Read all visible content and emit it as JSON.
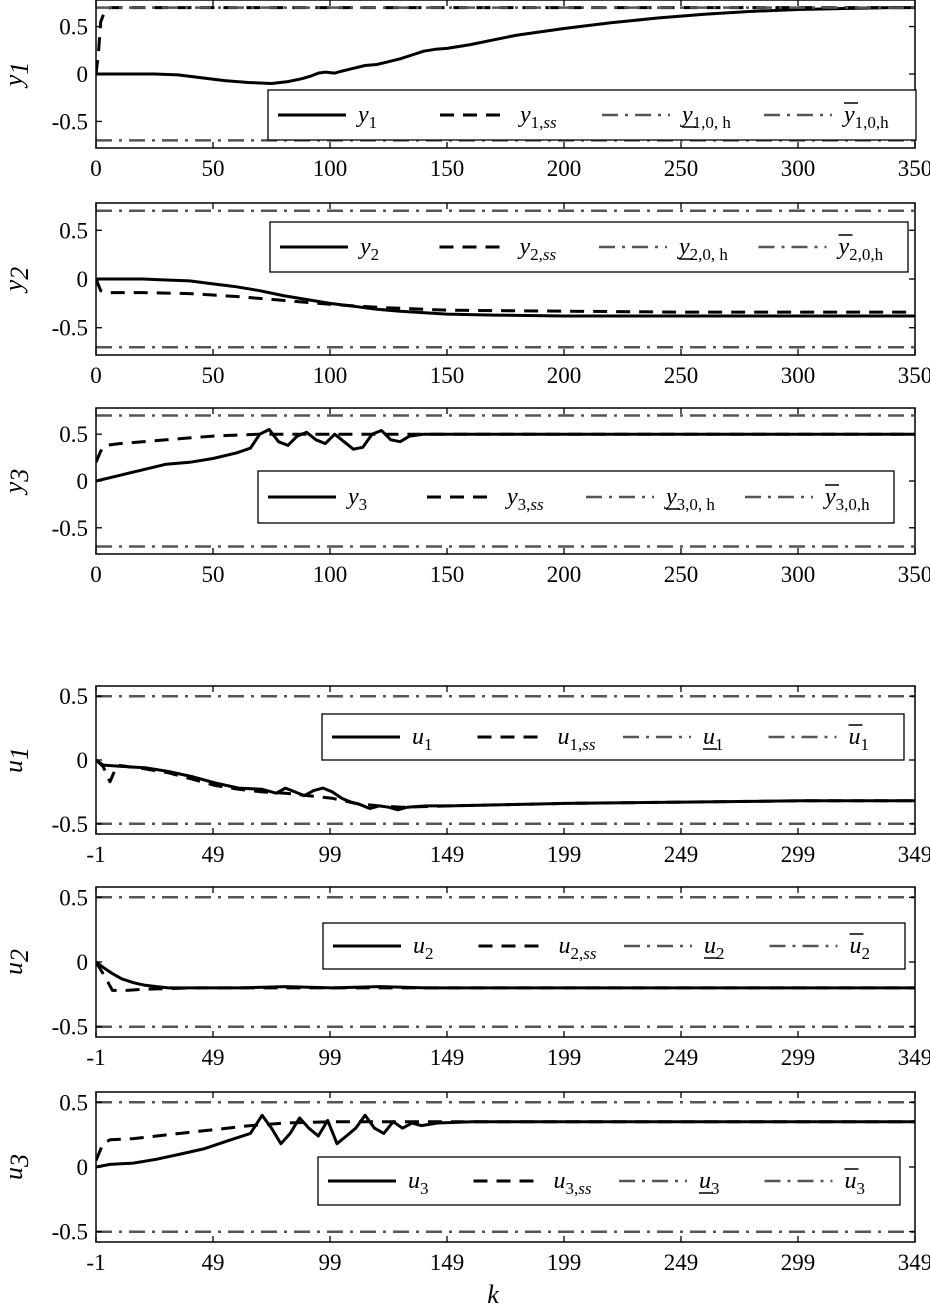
{
  "chart_data": [
    {
      "type": "line",
      "ylabel": "y",
      "ylabel_sub": "1",
      "xlim": [
        0,
        350
      ],
      "ylim": [
        -0.78,
        0.78
      ],
      "xticks": [
        0,
        50,
        100,
        150,
        200,
        250,
        300,
        350
      ],
      "xtick_labels": [
        "0",
        "50",
        "100",
        "150",
        "200",
        "250",
        "300",
        "350"
      ],
      "yticks": [
        0.5,
        0,
        -0.5
      ],
      "ytick_labels": [
        "0.5",
        "0",
        "-0.5"
      ],
      "grid": false,
      "legend_position": "bottom-right",
      "series": [
        {
          "name": "y1",
          "label_main": "y",
          "label_sub": "1",
          "style": "solid",
          "x": [
            0,
            25,
            35,
            45,
            55,
            65,
            75,
            82,
            88,
            92,
            95,
            98,
            102,
            105,
            110,
            115,
            120,
            125,
            130,
            135,
            140,
            145,
            150,
            160,
            170,
            180,
            200,
            220,
            240,
            260,
            280,
            300,
            320,
            340,
            350
          ],
          "y": [
            0,
            0,
            -0.01,
            -0.04,
            -0.07,
            -0.09,
            -0.1,
            -0.08,
            -0.05,
            -0.02,
            0.01,
            0.02,
            0.01,
            0.03,
            0.06,
            0.09,
            0.1,
            0.13,
            0.16,
            0.2,
            0.24,
            0.26,
            0.27,
            0.31,
            0.36,
            0.41,
            0.48,
            0.54,
            0.59,
            0.63,
            0.66,
            0.68,
            0.69,
            0.7,
            0.7
          ]
        },
        {
          "name": "y1,ss",
          "label_main": "y",
          "label_sub": "1,",
          "label_subit": "ss",
          "style": "dashed",
          "x": [
            0,
            1,
            2,
            4,
            6,
            350
          ],
          "y": [
            0,
            0.2,
            0.55,
            0.68,
            0.7,
            0.7
          ]
        },
        {
          "name": "y_1,0,h",
          "label_main": "y",
          "label_sub": "1,0, h",
          "style": "dashdot",
          "bar": "under",
          "x": [
            0,
            350
          ],
          "y": [
            -0.7,
            -0.7
          ]
        },
        {
          "name": "ȳ1,0,h",
          "label_main": "y",
          "label_sub": "1,0,h",
          "style": "dashdot",
          "bar": "over",
          "x": [
            0,
            350
          ],
          "y": [
            0.7,
            0.7
          ]
        }
      ]
    },
    {
      "type": "line",
      "ylabel": "y",
      "ylabel_sub": "2",
      "xlim": [
        0,
        350
      ],
      "ylim": [
        -0.78,
        0.78
      ],
      "xticks": [
        0,
        50,
        100,
        150,
        200,
        250,
        300,
        350
      ],
      "xtick_labels": [
        "0",
        "50",
        "100",
        "150",
        "200",
        "250",
        "300",
        "350"
      ],
      "yticks": [
        0.5,
        0,
        -0.5
      ],
      "ytick_labels": [
        "0.5",
        "0",
        "-0.5"
      ],
      "grid": false,
      "legend_position": "top-right",
      "series": [
        {
          "name": "y2",
          "label_main": "y",
          "label_sub": "2",
          "style": "solid",
          "x": [
            0,
            20,
            30,
            40,
            50,
            60,
            70,
            80,
            90,
            100,
            110,
            120,
            130,
            150,
            170,
            200,
            250,
            300,
            350
          ],
          "y": [
            0,
            0,
            -0.01,
            -0.02,
            -0.05,
            -0.08,
            -0.12,
            -0.17,
            -0.21,
            -0.25,
            -0.28,
            -0.31,
            -0.33,
            -0.36,
            -0.37,
            -0.38,
            -0.38,
            -0.38,
            -0.38
          ]
        },
        {
          "name": "y2,ss",
          "label_main": "y",
          "label_sub": "2,",
          "label_subit": "ss",
          "style": "dashed",
          "x": [
            0,
            2,
            4,
            20,
            40,
            60,
            80,
            100,
            120,
            150,
            200,
            250,
            300,
            350
          ],
          "y": [
            0,
            -0.12,
            -0.14,
            -0.14,
            -0.15,
            -0.18,
            -0.22,
            -0.26,
            -0.29,
            -0.32,
            -0.33,
            -0.34,
            -0.34,
            -0.34
          ]
        },
        {
          "name": "y_2,0,h",
          "label_main": "y",
          "label_sub": "2,0, h",
          "style": "dashdot",
          "bar": "under",
          "x": [
            0,
            350
          ],
          "y": [
            -0.7,
            -0.7
          ]
        },
        {
          "name": "ȳ2,0,h",
          "label_main": "y",
          "label_sub": "2,0,h",
          "style": "dashdot",
          "bar": "over",
          "x": [
            0,
            350
          ],
          "y": [
            0.7,
            0.7
          ]
        }
      ]
    },
    {
      "type": "line",
      "ylabel": "y",
      "ylabel_sub": "3",
      "xlim": [
        0,
        350
      ],
      "ylim": [
        -0.78,
        0.78
      ],
      "xticks": [
        0,
        50,
        100,
        150,
        200,
        250,
        300,
        350
      ],
      "xtick_labels": [
        "0",
        "50",
        "100",
        "150",
        "200",
        "250",
        "300",
        "350"
      ],
      "yticks": [
        0.5,
        0,
        -0.5
      ],
      "ytick_labels": [
        "0.5",
        "0",
        "-0.5"
      ],
      "grid": false,
      "legend_position": "bottom-right",
      "series": [
        {
          "name": "y3",
          "label_main": "y",
          "label_sub": "3",
          "style": "solid",
          "x": [
            0,
            10,
            20,
            30,
            40,
            50,
            60,
            66,
            70,
            74,
            78,
            82,
            86,
            90,
            94,
            98,
            102,
            106,
            110,
            114,
            118,
            122,
            126,
            130,
            134,
            140,
            150,
            200,
            250,
            300,
            350
          ],
          "y": [
            0,
            0.06,
            0.12,
            0.18,
            0.2,
            0.24,
            0.3,
            0.35,
            0.5,
            0.55,
            0.42,
            0.38,
            0.48,
            0.52,
            0.44,
            0.4,
            0.5,
            0.42,
            0.34,
            0.36,
            0.5,
            0.54,
            0.44,
            0.42,
            0.48,
            0.5,
            0.5,
            0.5,
            0.5,
            0.5,
            0.5
          ]
        },
        {
          "name": "y3,ss",
          "label_main": "y",
          "label_sub": "3,",
          "label_subit": "ss",
          "style": "dashed",
          "x": [
            0,
            2,
            4,
            10,
            20,
            30,
            40,
            50,
            60,
            70,
            80,
            100,
            120,
            150,
            200,
            250,
            300,
            350
          ],
          "y": [
            0.2,
            0.32,
            0.38,
            0.4,
            0.42,
            0.44,
            0.46,
            0.48,
            0.49,
            0.5,
            0.5,
            0.5,
            0.5,
            0.5,
            0.5,
            0.5,
            0.5,
            0.5
          ]
        },
        {
          "name": "y_3,0,h",
          "label_main": "y",
          "label_sub": "3,0, h",
          "style": "dashdot",
          "bar": "under",
          "x": [
            0,
            350
          ],
          "y": [
            -0.7,
            -0.7
          ]
        },
        {
          "name": "ȳ3,0,h",
          "label_main": "y",
          "label_sub": "3,0,h",
          "style": "dashdot",
          "bar": "over",
          "x": [
            0,
            350
          ],
          "y": [
            0.7,
            0.7
          ]
        }
      ]
    },
    {
      "type": "line",
      "ylabel": "u",
      "ylabel_sub": "1",
      "xlim": [
        -1,
        349
      ],
      "ylim": [
        -0.58,
        0.58
      ],
      "xticks": [
        -1,
        49,
        99,
        149,
        199,
        249,
        299,
        349
      ],
      "xtick_labels": [
        "-1",
        "49",
        "99",
        "149",
        "199",
        "249",
        "299",
        "349"
      ],
      "yticks": [
        0.5,
        0,
        -0.5
      ],
      "ytick_labels": [
        "0.5",
        "0",
        "-0.5"
      ],
      "grid": false,
      "legend_position": "top-right",
      "series": [
        {
          "name": "u1",
          "label_main": "u",
          "label_sub": "1",
          "style": "solid",
          "x": [
            -1,
            2,
            10,
            20,
            30,
            40,
            50,
            60,
            70,
            76,
            80,
            84,
            88,
            92,
            96,
            100,
            104,
            108,
            112,
            116,
            120,
            124,
            128,
            132,
            140,
            150,
            200,
            250,
            300,
            349
          ],
          "y": [
            0,
            -0.04,
            -0.05,
            -0.06,
            -0.09,
            -0.13,
            -0.18,
            -0.22,
            -0.23,
            -0.26,
            -0.22,
            -0.25,
            -0.28,
            -0.24,
            -0.22,
            -0.25,
            -0.3,
            -0.33,
            -0.35,
            -0.38,
            -0.36,
            -0.37,
            -0.39,
            -0.37,
            -0.36,
            -0.36,
            -0.34,
            -0.33,
            -0.32,
            -0.32
          ]
        },
        {
          "name": "u1,ss",
          "label_main": "u",
          "label_sub": "1,",
          "label_subit": "ss",
          "style": "dashed",
          "x": [
            -1,
            2,
            5,
            8,
            12,
            20,
            30,
            40,
            50,
            60,
            70,
            80,
            90,
            100,
            110,
            120,
            130,
            150,
            200,
            250,
            300,
            349
          ],
          "y": [
            0,
            -0.05,
            -0.17,
            -0.04,
            -0.05,
            -0.07,
            -0.1,
            -0.15,
            -0.2,
            -0.23,
            -0.25,
            -0.26,
            -0.28,
            -0.3,
            -0.34,
            -0.36,
            -0.37,
            -0.36,
            -0.34,
            -0.33,
            -0.32,
            -0.32
          ]
        },
        {
          "name": "u_1",
          "label_main": "u",
          "label_sub": "1",
          "style": "dashdot",
          "bar": "under",
          "x": [
            -1,
            349
          ],
          "y": [
            -0.5,
            -0.5
          ]
        },
        {
          "name": "ū1",
          "label_main": "u",
          "label_sub": "1",
          "style": "dashdot",
          "bar": "over",
          "x": [
            -1,
            349
          ],
          "y": [
            0.5,
            0.5
          ]
        }
      ]
    },
    {
      "type": "line",
      "ylabel": "u",
      "ylabel_sub": "2",
      "xlim": [
        -1,
        349
      ],
      "ylim": [
        -0.58,
        0.58
      ],
      "xticks": [
        -1,
        49,
        99,
        149,
        199,
        249,
        299,
        349
      ],
      "xtick_labels": [
        "-1",
        "49",
        "99",
        "149",
        "199",
        "249",
        "299",
        "349"
      ],
      "yticks": [
        0.5,
        0,
        -0.5
      ],
      "ytick_labels": [
        "0.5",
        "0",
        "-0.5"
      ],
      "grid": false,
      "legend_position": "top-right",
      "series": [
        {
          "name": "u2",
          "label_main": "u",
          "label_sub": "2",
          "style": "solid",
          "x": [
            -1,
            2,
            6,
            10,
            15,
            20,
            25,
            30,
            40,
            60,
            80,
            100,
            120,
            140,
            160,
            200,
            250,
            300,
            349
          ],
          "y": [
            0,
            -0.04,
            -0.09,
            -0.13,
            -0.16,
            -0.18,
            -0.19,
            -0.2,
            -0.2,
            -0.2,
            -0.19,
            -0.2,
            -0.19,
            -0.2,
            -0.2,
            -0.2,
            -0.2,
            -0.2,
            -0.2
          ]
        },
        {
          "name": "u2,ss",
          "label_main": "u",
          "label_sub": "2,",
          "label_subit": "ss",
          "style": "dashed",
          "x": [
            -1,
            3,
            6,
            12,
            20,
            40,
            60,
            80,
            100,
            150,
            200,
            250,
            300,
            349
          ],
          "y": [
            0,
            -0.12,
            -0.22,
            -0.22,
            -0.21,
            -0.2,
            -0.2,
            -0.2,
            -0.2,
            -0.2,
            -0.2,
            -0.2,
            -0.2,
            -0.2
          ]
        },
        {
          "name": "u_2",
          "label_main": "u",
          "label_sub": "2",
          "style": "dashdot",
          "bar": "under",
          "x": [
            -1,
            349
          ],
          "y": [
            -0.5,
            -0.5
          ]
        },
        {
          "name": "ū2",
          "label_main": "u",
          "label_sub": "2",
          "style": "dashdot",
          "bar": "over",
          "x": [
            -1,
            349
          ],
          "y": [
            0.5,
            0.5
          ]
        }
      ]
    },
    {
      "type": "line",
      "ylabel": "u",
      "ylabel_sub": "3",
      "xlim": [
        -1,
        349
      ],
      "ylim": [
        -0.58,
        0.58
      ],
      "xticks": [
        -1,
        49,
        99,
        149,
        199,
        249,
        299,
        349
      ],
      "xtick_labels": [
        "-1",
        "49",
        "99",
        "149",
        "199",
        "249",
        "299",
        "349"
      ],
      "yticks": [
        0.5,
        0,
        -0.5
      ],
      "ytick_labels": [
        "0.5",
        "0",
        "-0.5"
      ],
      "grid": false,
      "legend_position": "bottom-right",
      "series": [
        {
          "name": "u3",
          "label_main": "u",
          "label_sub": "3",
          "style": "solid",
          "x": [
            -1,
            5,
            15,
            25,
            35,
            45,
            55,
            65,
            70,
            74,
            78,
            82,
            86,
            90,
            94,
            98,
            102,
            106,
            110,
            114,
            118,
            122,
            126,
            130,
            134,
            138,
            145,
            160,
            200,
            250,
            300,
            349
          ],
          "y": [
            0,
            0.02,
            0.03,
            0.06,
            0.1,
            0.14,
            0.2,
            0.26,
            0.4,
            0.3,
            0.18,
            0.26,
            0.38,
            0.3,
            0.24,
            0.36,
            0.18,
            0.24,
            0.3,
            0.4,
            0.3,
            0.26,
            0.35,
            0.3,
            0.34,
            0.32,
            0.34,
            0.35,
            0.35,
            0.35,
            0.35,
            0.35
          ]
        },
        {
          "name": "u3,ss",
          "label_main": "u",
          "label_sub": "3,",
          "label_subit": "ss",
          "style": "dashed",
          "x": [
            -1,
            2,
            5,
            15,
            25,
            35,
            45,
            55,
            65,
            80,
            100,
            130,
            160,
            200,
            250,
            300,
            349
          ],
          "y": [
            0.05,
            0.18,
            0.21,
            0.22,
            0.24,
            0.26,
            0.28,
            0.3,
            0.32,
            0.34,
            0.35,
            0.35,
            0.35,
            0.35,
            0.35,
            0.35,
            0.35
          ]
        },
        {
          "name": "u_3",
          "label_main": "u",
          "label_sub": "3",
          "style": "dashdot",
          "bar": "under",
          "x": [
            -1,
            349
          ],
          "y": [
            -0.5,
            -0.5
          ]
        },
        {
          "name": "ū3",
          "label_main": "u",
          "label_sub": "3",
          "style": "dashdot",
          "bar": "over",
          "x": [
            -1,
            349
          ],
          "y": [
            0.5,
            0.5
          ]
        }
      ]
    }
  ],
  "shared": {
    "xlabel": "k"
  }
}
